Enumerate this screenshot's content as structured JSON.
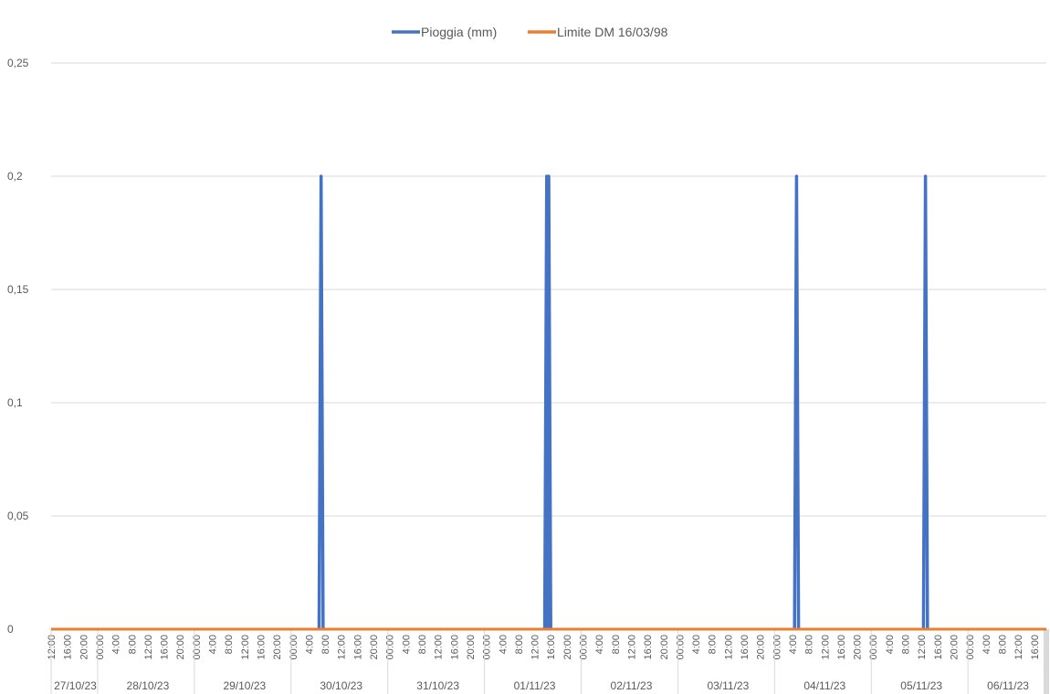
{
  "chart_data": {
    "type": "line",
    "title": "",
    "xlabel": "",
    "ylabel": "",
    "ylim": [
      0,
      0.25
    ],
    "y_ticks": [
      "0",
      "0,05",
      "0,1",
      "0,15",
      "0,2",
      "0,25"
    ],
    "y_tick_values": [
      0,
      0.05,
      0.1,
      0.15,
      0.2,
      0.25
    ],
    "grid": "horizontal",
    "legend_position": "top",
    "x_range": [
      "27/10/23 12:00",
      "06/11/23 16:00"
    ],
    "x_hour_labels_per_day": [
      "00:00",
      "4:00",
      "8:00",
      "12:00",
      "16:00",
      "20:00"
    ],
    "x_date_labels": [
      "27/10/23",
      "28/10/23",
      "29/10/23",
      "30/10/23",
      "31/10/23",
      "01/11/23",
      "02/11/23",
      "03/11/23",
      "04/11/23",
      "05/11/23",
      "06/11/23"
    ],
    "series": [
      {
        "name": "Pioggia (mm)",
        "color": "#4472C4",
        "points": [
          {
            "x": "30/10/23 06:30",
            "y": 0
          },
          {
            "x": "30/10/23 07:00",
            "y": 0.2
          },
          {
            "x": "30/10/23 07:30",
            "y": 0
          },
          {
            "x": "01/11/23 14:30",
            "y": 0
          },
          {
            "x": "01/11/23 15:00",
            "y": 0.2
          },
          {
            "x": "01/11/23 15:30",
            "y": 0.2
          },
          {
            "x": "01/11/23 16:00",
            "y": 0
          },
          {
            "x": "04/11/23 04:30",
            "y": 0
          },
          {
            "x": "04/11/23 05:00",
            "y": 0.2
          },
          {
            "x": "04/11/23 05:30",
            "y": 0
          },
          {
            "x": "05/11/23 12:30",
            "y": 0
          },
          {
            "x": "05/11/23 13:00",
            "y": 0.2
          },
          {
            "x": "05/11/23 13:30",
            "y": 0
          }
        ],
        "baseline": 0
      },
      {
        "name": "Limite DM 16/03/98",
        "color": "#ED7D31",
        "points": [
          {
            "x": "27/10/23 12:00",
            "y": 0
          },
          {
            "x": "06/11/23 16:00",
            "y": 0
          }
        ]
      }
    ]
  }
}
